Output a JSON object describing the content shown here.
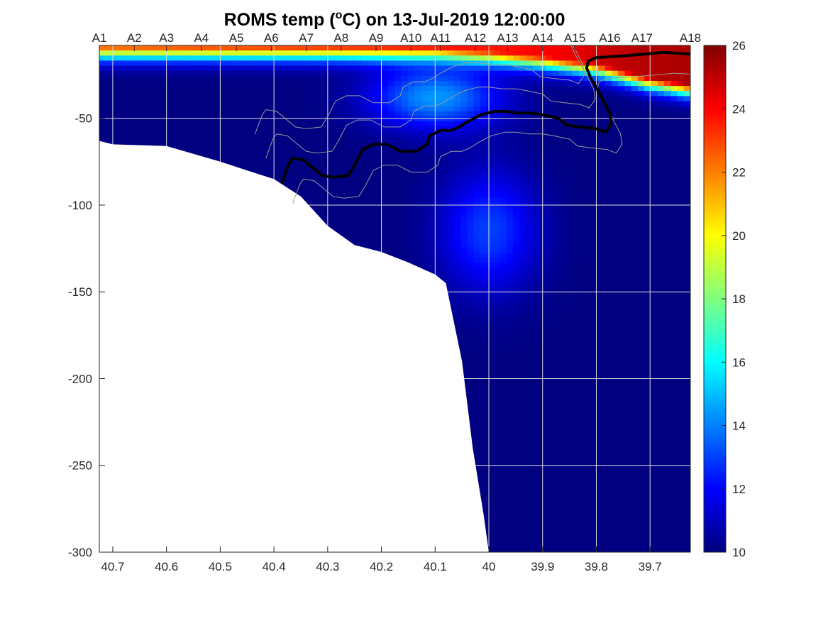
{
  "chart_data": {
    "type": "heatmap",
    "title": {
      "prefix": "ROMS temp (",
      "superscript": "o",
      "suffix": "C) on 13-Jul-2019 12:00:00"
    },
    "xlabel": "",
    "ylabel": "",
    "xlim": [
      40.725,
      39.625
    ],
    "ylim": [
      -300,
      -8
    ],
    "x_reversed": true,
    "grid": true,
    "x_ticks": [
      40.7,
      40.6,
      40.5,
      40.4,
      40.3,
      40.2,
      40.1,
      40,
      39.9,
      39.8,
      39.7
    ],
    "x_tick_labels": [
      "40.7",
      "40.6",
      "40.5",
      "40.4",
      "40.3",
      "40.2",
      "40.1",
      "40",
      "39.9",
      "39.8",
      "39.7"
    ],
    "y_ticks": [
      -50,
      -100,
      -150,
      -200,
      -250,
      -300
    ],
    "y_tick_labels": [
      "-50",
      "-100",
      "-150",
      "-200",
      "-250",
      "-300"
    ],
    "stations": {
      "labels": [
        "A1",
        "A2",
        "A3",
        "A4",
        "A5",
        "A6",
        "A7",
        "A8",
        "A9",
        "A10",
        "A11",
        "A12",
        "A13",
        "A14",
        "A15",
        "A16",
        "A17",
        "A18"
      ],
      "lat": [
        40.725,
        40.66,
        40.6,
        40.535,
        40.47,
        40.405,
        40.34,
        40.275,
        40.21,
        40.145,
        40.09,
        40.025,
        39.965,
        39.9,
        39.84,
        39.775,
        39.715,
        39.625
      ]
    },
    "colorbar": {
      "min": 10,
      "max": 26,
      "ticks": [
        10,
        12,
        14,
        16,
        18,
        20,
        22,
        24,
        26
      ],
      "tick_labels": [
        "10",
        "12",
        "14",
        "16",
        "18",
        "20",
        "22",
        "24",
        "26"
      ],
      "colormap": "jet"
    },
    "bathymetry": {
      "lat": [
        40.725,
        40.7,
        40.6,
        40.5,
        40.45,
        40.4,
        40.35,
        40.3,
        40.25,
        40.2,
        40.15,
        40.1,
        40.08,
        40.05,
        40.03,
        40.01,
        40.0
      ],
      "depth": [
        -63,
        -65,
        -66,
        -75,
        -80,
        -85,
        -95,
        -112,
        -123,
        -127,
        -133,
        -140,
        -145,
        -190,
        -240,
        -278,
        -300
      ]
    },
    "surface_layer": {
      "lat": [
        40.725,
        40.6,
        40.4,
        40.2,
        40.1,
        40.0,
        39.9,
        39.85,
        39.8,
        39.75,
        39.7,
        39.625
      ],
      "surface_temp": [
        22.3,
        22.6,
        23.0,
        23.2,
        23.3,
        23.5,
        24.0,
        24.3,
        24.7,
        25.0,
        25.2,
        25.3
      ],
      "mixed_layer_depth": [
        -9,
        -9,
        -9,
        -9,
        -9,
        -11,
        -14,
        -16,
        -18,
        -22,
        -26,
        -30
      ]
    },
    "isotherm_contour": {
      "lat": [
        40.385,
        40.372,
        40.365,
        40.345,
        40.31,
        40.29,
        40.262,
        40.25,
        40.235,
        40.215,
        40.19,
        40.165,
        40.135,
        40.115,
        40.11,
        40.09,
        40.07,
        40.055,
        40.04,
        40.015,
        39.99,
        39.97,
        39.945,
        39.92,
        39.9,
        39.87,
        39.855,
        39.83,
        39.8,
        39.783,
        39.772,
        39.775,
        39.79,
        39.81,
        39.818,
        39.815,
        39.8,
        39.75,
        39.71,
        39.675,
        39.625
      ],
      "depth": [
        -87,
        -76,
        -73,
        -74,
        -83,
        -84,
        -83,
        -77,
        -68,
        -65,
        -65,
        -69,
        -69,
        -65,
        -60,
        -57,
        -57,
        -55,
        -52,
        -48,
        -46,
        -46,
        -47,
        -47,
        -48,
        -50,
        -54,
        -55,
        -56,
        -58,
        -53,
        -47,
        -38,
        -27,
        -21,
        -17,
        -15,
        -14,
        -13,
        -12,
        -13
      ]
    },
    "cold_core": {
      "lat": 40.0,
      "depth": -115,
      "temp": 13.0
    },
    "subsurface_warm_patch": {
      "lat": 40.1,
      "depth": -38,
      "temp": 15.5
    },
    "colors": {
      "contour_main": "#000000",
      "contour_secondary": "#9a9a9a",
      "grid": "#dedede",
      "axes": "#262626"
    }
  }
}
